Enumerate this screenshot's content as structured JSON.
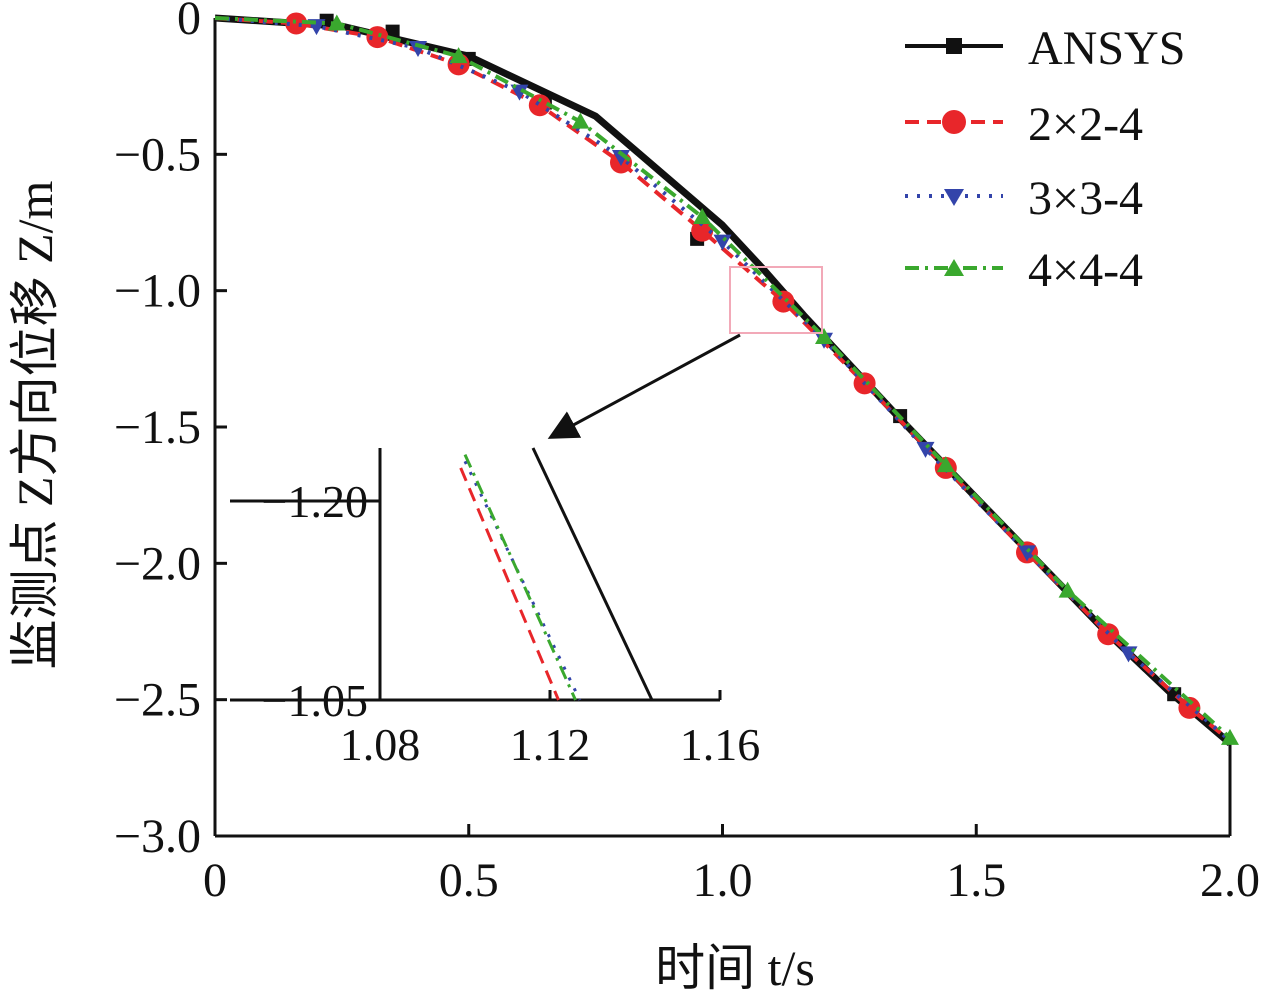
{
  "chart_data": [
    {
      "type": "line",
      "panel": "main",
      "xlabel": "时间 t/s",
      "ylabel": "监测点 Z方向位移 Z/m",
      "xlim": [
        0,
        2.0
      ],
      "ylim": [
        -3.0,
        0
      ],
      "x_ticks": [
        0,
        0.5,
        1.0,
        1.5,
        2.0
      ],
      "x_tick_labels": [
        "0",
        "0.5",
        "1.0",
        "1.5",
        "2.0"
      ],
      "y_ticks": [
        0,
        -0.5,
        -1.0,
        -1.5,
        -2.0,
        -2.5,
        -3.0
      ],
      "y_tick_labels": [
        "0",
        "−0.5",
        "−1.0",
        "−1.5",
        "−2.0",
        "−2.5",
        "−3.0"
      ],
      "grid": false,
      "legend_position": "top-right",
      "series": [
        {
          "name": "ANSYS",
          "color": "#111111",
          "marker": "square",
          "line_style": "solid",
          "x": [
            0,
            0.25,
            0.5,
            0.75,
            1.0,
            1.08,
            1.16,
            1.35,
            1.5,
            1.75,
            1.88,
            2.0
          ],
          "y": [
            0,
            -0.03,
            -0.14,
            -0.36,
            -0.76,
            -0.92,
            -1.09,
            -1.47,
            -1.76,
            -2.24,
            -2.47,
            -2.66
          ],
          "marker_x": [
            0.22,
            0.35,
            0.5,
            0.65,
            0.8,
            0.95,
            1.35,
            1.89
          ],
          "marker_y": [
            -0.01,
            -0.05,
            -0.15,
            -0.31,
            -0.53,
            -0.81,
            -1.46,
            -2.48
          ]
        },
        {
          "name": "2×2-4",
          "color": "#e8262a",
          "marker": "circle",
          "line_style": "dashed",
          "x": [
            0,
            0.16,
            0.32,
            0.48,
            0.64,
            0.8,
            0.96,
            1.12,
            1.28,
            1.44,
            1.6,
            1.76,
            1.92,
            2.0
          ],
          "y": [
            0,
            -0.02,
            -0.07,
            -0.17,
            -0.32,
            -0.53,
            -0.78,
            -1.04,
            -1.34,
            -1.65,
            -1.96,
            -2.26,
            -2.53,
            -2.65
          ],
          "marker_x": [
            0.16,
            0.32,
            0.48,
            0.64,
            0.8,
            0.96,
            1.12,
            1.28,
            1.44,
            1.6,
            1.76,
            1.92
          ],
          "marker_y": [
            -0.02,
            -0.07,
            -0.17,
            -0.32,
            -0.53,
            -0.78,
            -1.04,
            -1.34,
            -1.65,
            -1.96,
            -2.26,
            -2.53
          ]
        },
        {
          "name": "3×3-4",
          "color": "#3344aa",
          "marker": "triangle-down",
          "line_style": "dotted",
          "x": [
            0,
            0.2,
            0.4,
            0.6,
            0.8,
            1.0,
            1.2,
            1.4,
            1.6,
            1.8,
            2.0
          ],
          "y": [
            0,
            -0.03,
            -0.11,
            -0.27,
            -0.51,
            -0.82,
            -1.18,
            -1.58,
            -1.96,
            -2.33,
            -2.65
          ],
          "marker_x": [
            0.2,
            0.4,
            0.6,
            0.8,
            1.0,
            1.2,
            1.4,
            1.6,
            1.8
          ],
          "marker_y": [
            -0.03,
            -0.11,
            -0.27,
            -0.51,
            -0.82,
            -1.18,
            -1.58,
            -1.96,
            -2.33
          ]
        },
        {
          "name": "4×4-4",
          "color": "#3aa82e",
          "marker": "triangle-up",
          "line_style": "dash-dot",
          "x": [
            0,
            0.24,
            0.48,
            0.72,
            0.96,
            1.2,
            1.44,
            1.68,
            2.0
          ],
          "y": [
            0,
            -0.02,
            -0.14,
            -0.38,
            -0.73,
            -1.17,
            -1.64,
            -2.1,
            -2.64
          ],
          "marker_x": [
            0.24,
            0.48,
            0.72,
            0.96,
            1.2,
            1.44,
            1.68,
            2.0
          ],
          "marker_y": [
            -0.02,
            -0.14,
            -0.38,
            -0.73,
            -1.17,
            -1.64,
            -2.1,
            -2.64
          ]
        }
      ],
      "zoom_box": {
        "xlim": [
          1.04,
          1.22
        ],
        "ylim": [
          -1.15,
          -0.9
        ]
      }
    },
    {
      "type": "line",
      "panel": "inset",
      "xlim": [
        1.08,
        1.16
      ],
      "ylim": [
        -1.05,
        -1.24
      ],
      "x_ticks": [
        1.08,
        1.12,
        1.16
      ],
      "x_tick_labels": [
        "1.08",
        "1.12",
        "1.16"
      ],
      "y_ticks": [
        -1.2,
        -1.05
      ],
      "y_tick_labels": [
        "−1.20",
        "−1.05"
      ],
      "series": [
        {
          "name": "ANSYS",
          "color": "#111111",
          "line_style": "solid",
          "x": [
            1.116,
            1.144
          ],
          "y": [
            -1.24,
            -1.05
          ]
        },
        {
          "name": "2×2-4",
          "color": "#e8262a",
          "line_style": "dashed",
          "x": [
            1.099,
            1.122
          ],
          "y": [
            -1.225,
            -1.05
          ]
        },
        {
          "name": "3×3-4",
          "color": "#3344aa",
          "line_style": "dotted",
          "x": [
            1.1,
            1.127
          ],
          "y": [
            -1.23,
            -1.05
          ]
        },
        {
          "name": "4×4-4",
          "color": "#3aa82e",
          "line_style": "dash-dot",
          "x": [
            1.1,
            1.126
          ],
          "y": [
            -1.235,
            -1.05
          ]
        }
      ]
    }
  ]
}
